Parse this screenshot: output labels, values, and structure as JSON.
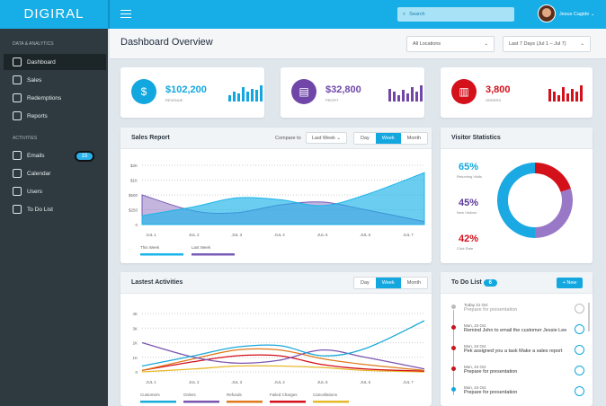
{
  "app": {
    "logo": "DIGIRAL"
  },
  "topbar": {
    "search_placeholder": "Search",
    "user_name": "Jesus Cagide"
  },
  "sidebar": {
    "section1": "DATA & ANALYTICS",
    "items1": [
      {
        "label": "Dashboard",
        "icon": "bar-chart-icon"
      },
      {
        "label": "Sales",
        "icon": "tag-icon"
      },
      {
        "label": "Redemptions",
        "icon": "dollar-icon"
      },
      {
        "label": "Reports",
        "icon": "pie-icon"
      }
    ],
    "section2": "ACTIVITIES",
    "items2": [
      {
        "label": "Emails",
        "icon": "mail-icon",
        "badge": "15"
      },
      {
        "label": "Calendar",
        "icon": "calendar-icon"
      },
      {
        "label": "Users",
        "icon": "user-icon"
      },
      {
        "label": "To Do List",
        "icon": "clipboard-icon"
      }
    ]
  },
  "header": {
    "title": "Dashboard Overview",
    "location": "All Locations",
    "range": "Last 7 Days (Jul 1 – Jul 7)"
  },
  "stats": [
    {
      "value": "$102,200",
      "label": "REVENUE",
      "color": "#13a7e0",
      "icon": "money-bag-icon",
      "bars": [
        0.4,
        0.6,
        0.5,
        0.9,
        0.6,
        0.8,
        0.7,
        1
      ]
    },
    {
      "value": "$32,800",
      "label": "PROFIT",
      "color": "#7047a8",
      "icon": "cash-register-icon",
      "bars": [
        0.8,
        0.6,
        0.4,
        0.7,
        0.5,
        0.9,
        0.6,
        1
      ]
    },
    {
      "value": "3,800",
      "label": "ORDERS",
      "color": "#d4101b",
      "icon": "clipboard-icon",
      "bars": [
        0.8,
        0.6,
        0.4,
        0.9,
        0.5,
        0.8,
        0.6,
        1
      ]
    }
  ],
  "sales": {
    "title": "Sales Report",
    "compare_label": "Compare to",
    "compare_value": "Last Week",
    "periods": [
      "Day",
      "Week",
      "Month"
    ],
    "active": "Week"
  },
  "activities": {
    "title": "Lastest Activities",
    "periods": [
      "Day",
      "Week",
      "Month"
    ],
    "active": "Week"
  },
  "visitors": {
    "title": "Visitor Statistics",
    "stats": [
      {
        "value": "65%",
        "label": "Returning Visits",
        "color": "#13a7e0"
      },
      {
        "value": "45%",
        "label": "New Visitors",
        "color": "#5b3a9a"
      },
      {
        "value": "42%",
        "label": "Click Rate",
        "color": "#d4101b"
      }
    ]
  },
  "todo": {
    "title": "To Do List",
    "count": "6",
    "new_label": "+ New",
    "items": [
      {
        "date": "Today 21 Oct",
        "text": "Prepare for presentation",
        "done": true,
        "color": "#bbbbbb"
      },
      {
        "date": "Mon, 24 Oct",
        "text": "Remind John to email the customer Jessie Lee",
        "done": false,
        "color": "#c8141c"
      },
      {
        "date": "Mon, 24 Oct",
        "text": "Pek assigned you a task Make a sales report",
        "done": false,
        "color": "#c8141c"
      },
      {
        "date": "Mon, 24 Oct",
        "text": "Prepare for presentation",
        "done": false,
        "color": "#c8141c"
      },
      {
        "date": "Mon, 24 Oct",
        "text": "Prepare for presentation",
        "done": false,
        "color": "#13a7e0"
      }
    ]
  },
  "chart_data": [
    {
      "type": "area",
      "title": "Sales Report",
      "categories": [
        "JUL 1",
        "JUL 2",
        "JUL 3",
        "JUL 4",
        "JUL 5",
        "JUL 6",
        "JUL 7"
      ],
      "y_ticks": [
        "0",
        "$250",
        "$500",
        "$1K",
        "$2K"
      ],
      "y_tick_values": [
        0,
        250,
        500,
        1000,
        2000
      ],
      "grid": true,
      "legend": "bottom-left",
      "series": [
        {
          "name": "This Week",
          "color": "#1bb4ea",
          "values": [
            150,
            300,
            450,
            420,
            320,
            500,
            1500
          ]
        },
        {
          "name": "Last Week",
          "color": "#7a5bb5",
          "values": [
            500,
            230,
            200,
            330,
            380,
            250,
            50
          ]
        }
      ]
    },
    {
      "type": "line",
      "title": "Lastest Activities",
      "categories": [
        "JUL 1",
        "JUL 2",
        "JUL 3",
        "JUL 4",
        "JUL 5",
        "JUL 6",
        "JUL 7"
      ],
      "y_ticks": [
        "0",
        "1K",
        "2K",
        "3K",
        "4K"
      ],
      "ylim": [
        0,
        4000
      ],
      "grid": true,
      "legend": "bottom-left",
      "series": [
        {
          "name": "Customers",
          "color": "#1aa9d8",
          "values": [
            400,
            1100,
            1700,
            1800,
            1100,
            1600,
            3500
          ]
        },
        {
          "name": "Orders",
          "color": "#7a55b0",
          "values": [
            2000,
            1000,
            600,
            800,
            1500,
            1000,
            200
          ]
        },
        {
          "name": "Refunds",
          "color": "#e07a1c",
          "values": [
            100,
            900,
            1500,
            1500,
            900,
            500,
            100
          ]
        },
        {
          "name": "Failed Charges",
          "color": "#d4101b",
          "values": [
            100,
            700,
            1100,
            1100,
            500,
            200,
            50
          ]
        },
        {
          "name": "Cancellations",
          "color": "#e6b92a",
          "values": [
            0,
            200,
            400,
            400,
            300,
            100,
            0
          ]
        }
      ]
    },
    {
      "type": "pie",
      "title": "Visitor Statistics",
      "donut": true,
      "slices": [
        {
          "color": "#d4101b",
          "value": 0.2
        },
        {
          "color": "#9a78c8",
          "value": 0.3
        },
        {
          "color": "#1ba9e3",
          "value": 0.5
        }
      ]
    }
  ]
}
